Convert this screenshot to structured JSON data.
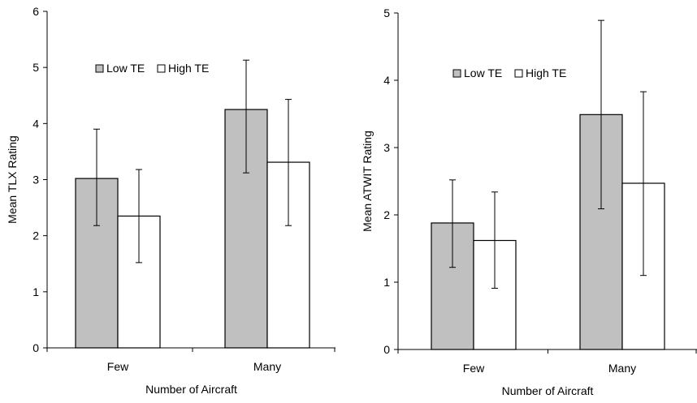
{
  "chart_data": [
    {
      "type": "bar",
      "xlabel": "Number of Aircraft",
      "ylabel": "Mean TLX Rating",
      "ylim": [
        0,
        6
      ],
      "yticks": [
        0,
        1,
        2,
        3,
        4,
        5,
        6
      ],
      "categories": [
        "Few",
        "Many"
      ],
      "series": [
        {
          "name": "Low TE",
          "color": "#c0c0c0",
          "values": [
            3.02,
            4.25
          ],
          "err_low": [
            2.18,
            3.12
          ],
          "err_high": [
            3.9,
            5.13
          ]
        },
        {
          "name": "High TE",
          "color": "#ffffff",
          "values": [
            2.35,
            3.31
          ],
          "err_low": [
            1.52,
            2.18
          ],
          "err_high": [
            3.18,
            4.43
          ]
        }
      ],
      "legend_position": "top-center"
    },
    {
      "type": "bar",
      "xlabel": "Number of Aircraft",
      "ylabel": "Mean ATWIT Rating",
      "ylim": [
        0,
        5
      ],
      "yticks": [
        0,
        1,
        2,
        3,
        4,
        5
      ],
      "categories": [
        "Few",
        "Many"
      ],
      "series": [
        {
          "name": "Low TE",
          "color": "#c0c0c0",
          "values": [
            1.88,
            3.49
          ],
          "err_low": [
            1.22,
            2.09
          ],
          "err_high": [
            2.52,
            4.89
          ]
        },
        {
          "name": "High TE",
          "color": "#ffffff",
          "values": [
            1.62,
            2.47
          ],
          "err_low": [
            0.91,
            1.1
          ],
          "err_high": [
            2.34,
            3.83
          ]
        }
      ],
      "legend_position": "top-center"
    }
  ]
}
